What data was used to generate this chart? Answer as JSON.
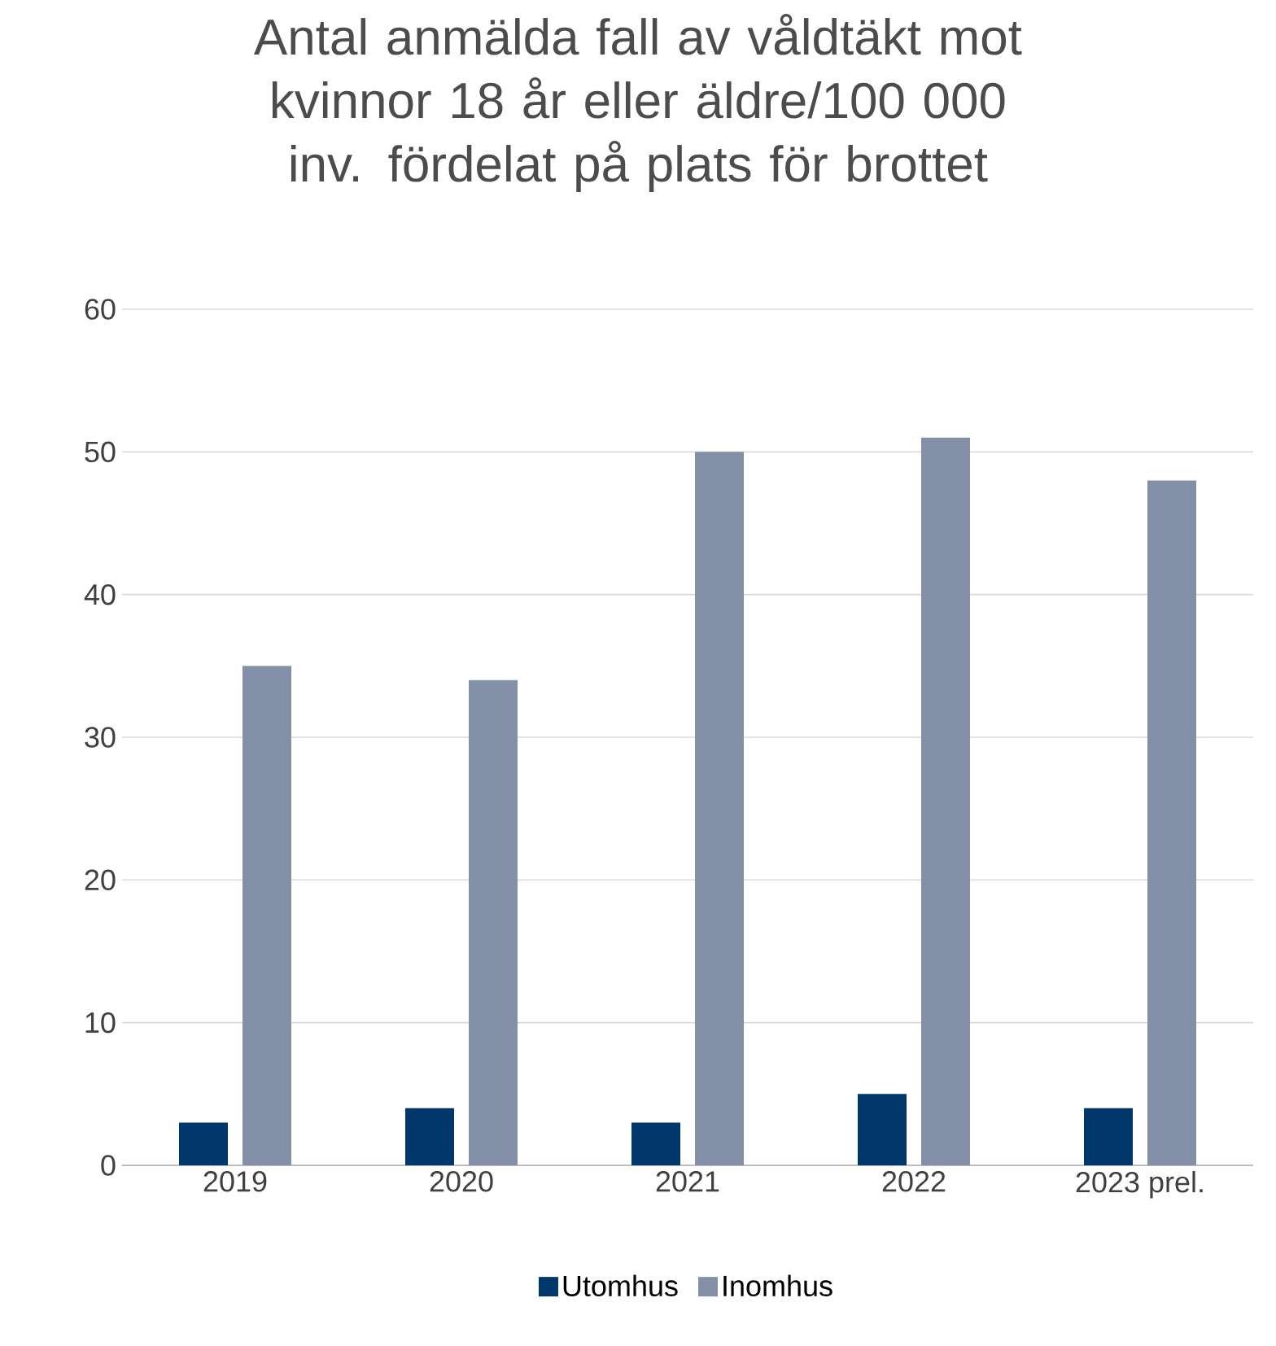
{
  "chart_data": {
    "type": "bar",
    "title": "Antal anmälda fall av våldtäkt mot kvinnor 18 år eller äldre/100 000 inv. fördelat på plats för brottet",
    "categories": [
      "2019",
      "2020",
      "2021",
      "2022",
      "2023 prel."
    ],
    "series": [
      {
        "name": "Utomhus",
        "color": "#00386b",
        "values": [
          3,
          4,
          3,
          5,
          4
        ]
      },
      {
        "name": "Inomhus",
        "color": "#8490a8",
        "values": [
          35,
          34,
          50,
          51,
          48
        ]
      }
    ],
    "ylim": [
      0,
      60
    ],
    "yticks": [
      0,
      10,
      20,
      30,
      40,
      50,
      60
    ],
    "grid": "y",
    "legend": "bottom"
  }
}
